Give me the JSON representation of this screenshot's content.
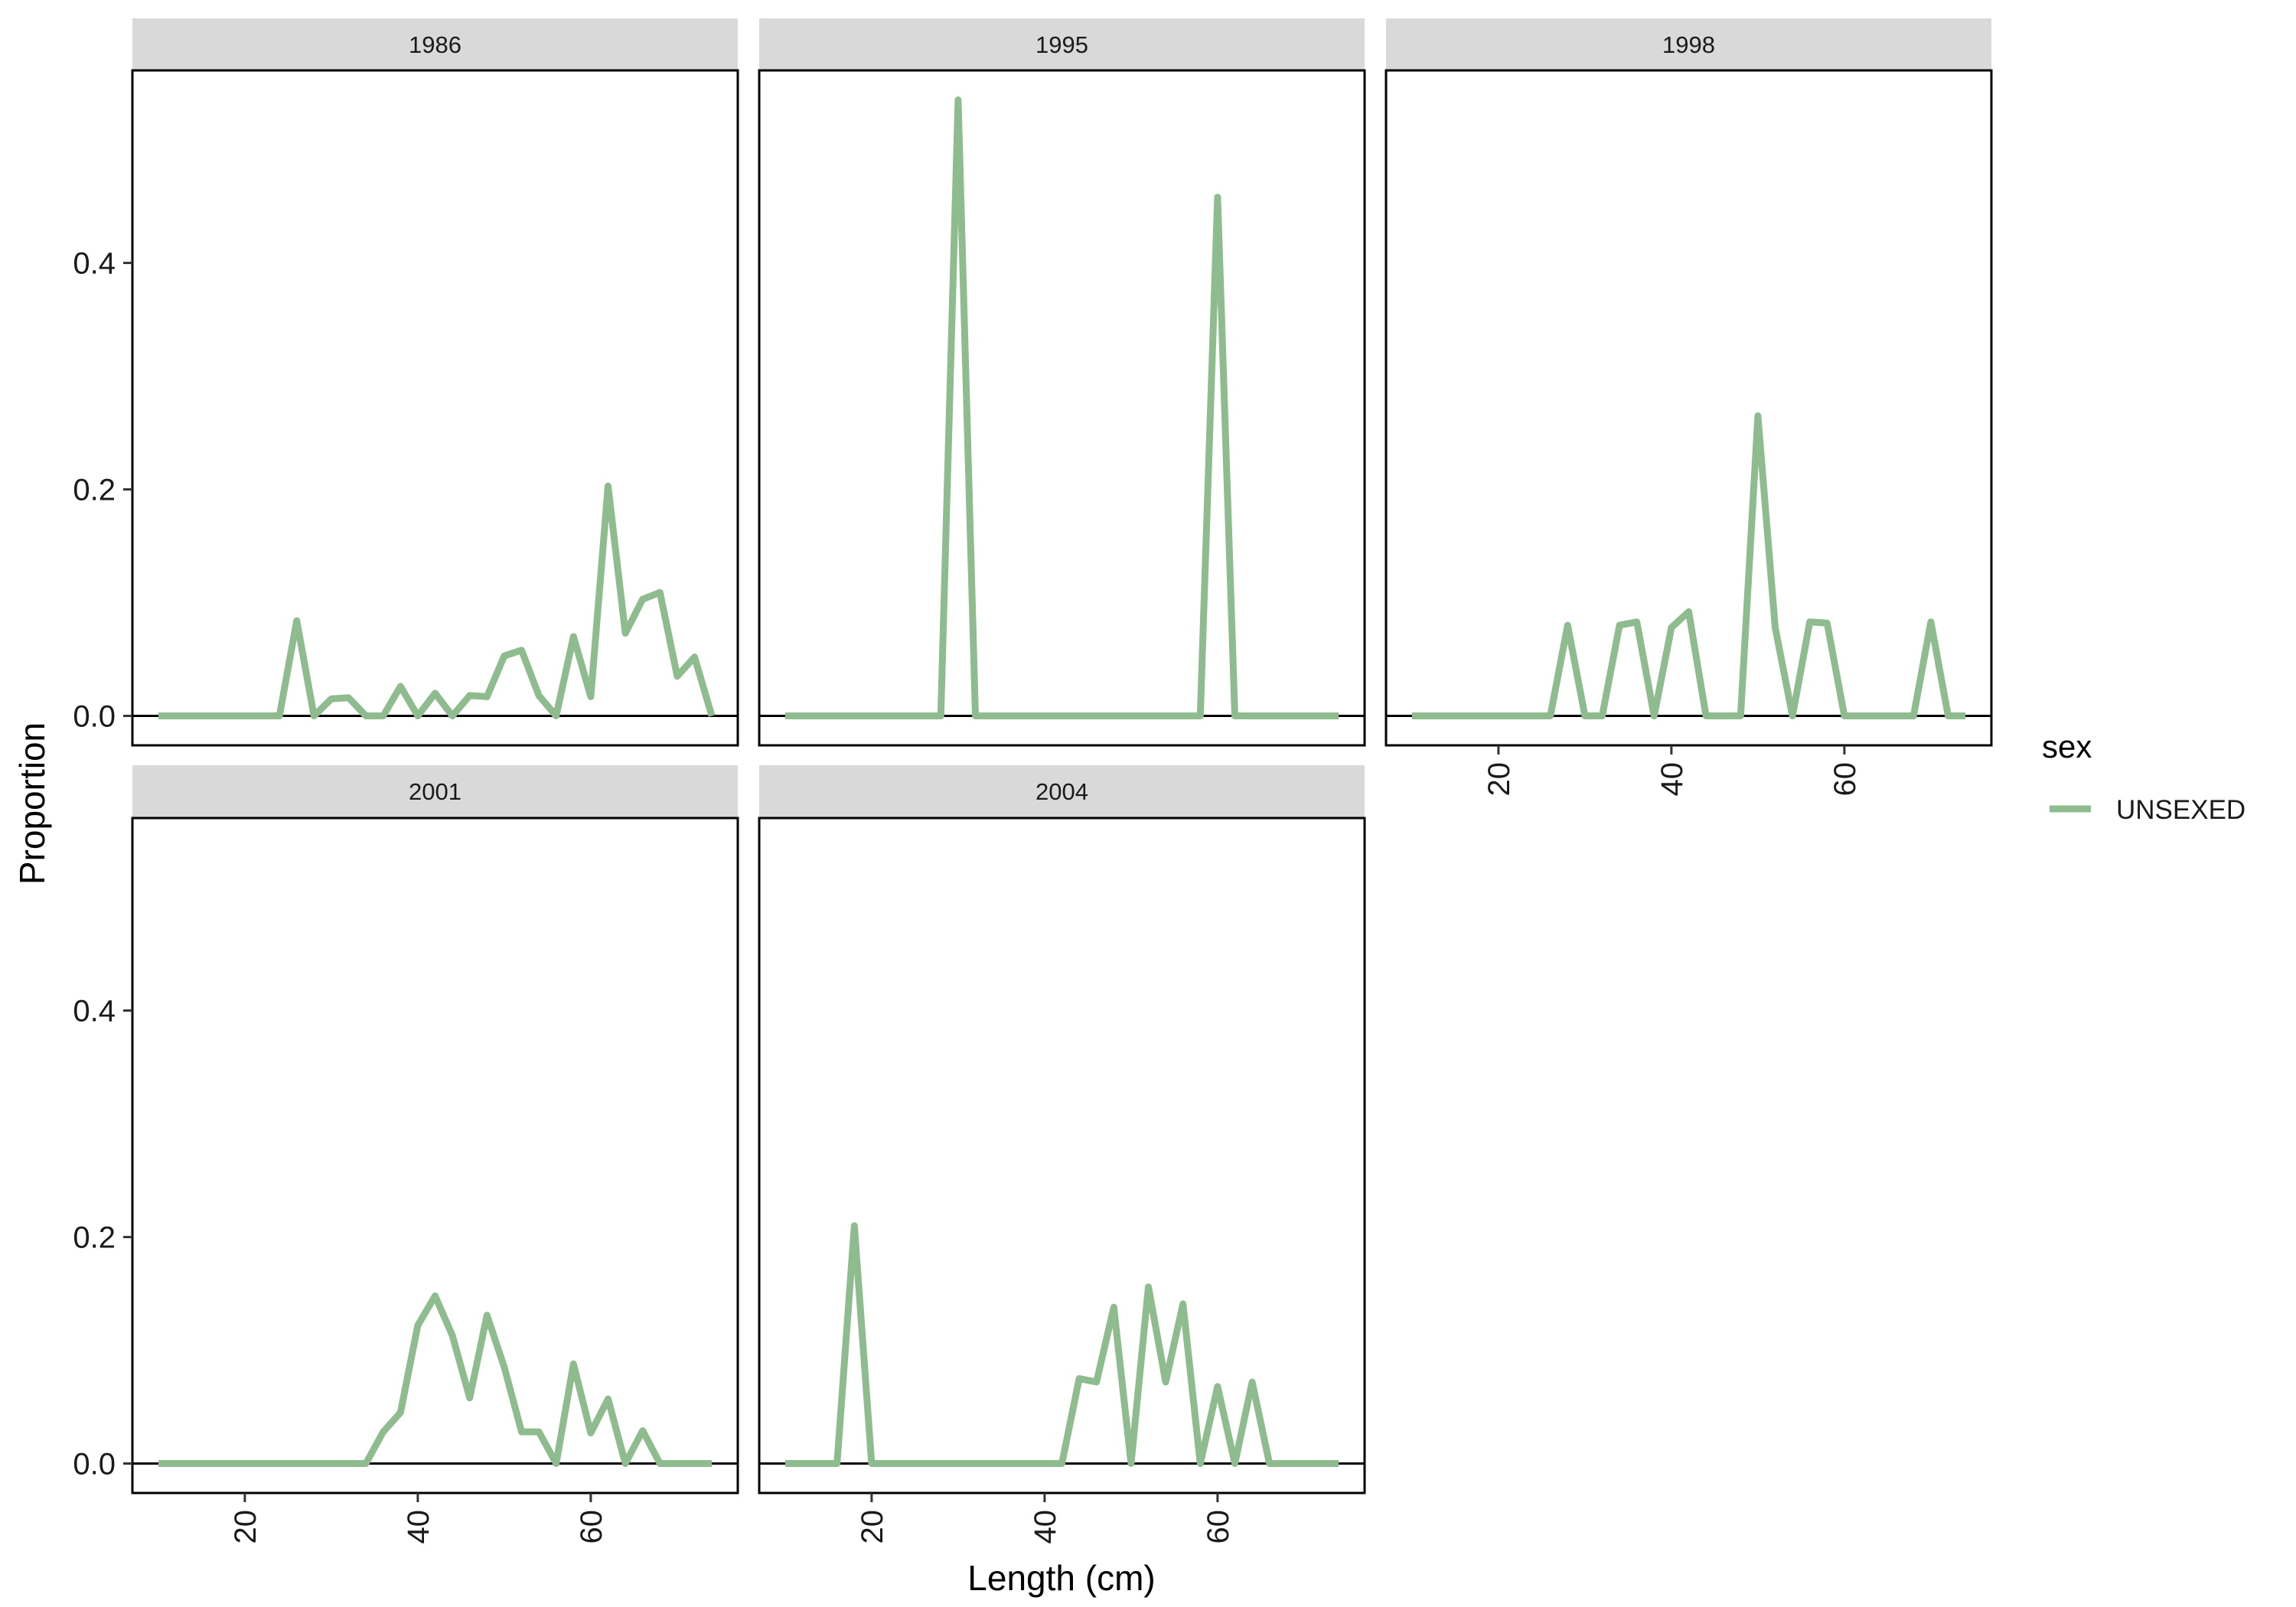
{
  "chart_data": {
    "type": "line",
    "xlabel": "Length (cm)",
    "ylabel": "Proportion",
    "xlim": [
      7,
      77
    ],
    "ylim": [
      -0.026,
      0.57
    ],
    "x_ticks": [
      20,
      40,
      60
    ],
    "y_ticks": [
      0.0,
      0.2,
      0.4
    ],
    "y_tick_labels": [
      "0.0",
      "0.2",
      "0.4"
    ],
    "x_tick_labels": [
      "20",
      "40",
      "60"
    ],
    "x": [
      10,
      12,
      14,
      16,
      18,
      20,
      22,
      24,
      26,
      28,
      30,
      32,
      34,
      36,
      38,
      40,
      42,
      44,
      46,
      48,
      50,
      52,
      54,
      56,
      58,
      60,
      62,
      64,
      66,
      68,
      70,
      72,
      74
    ],
    "legend": {
      "title": "sex",
      "items": [
        {
          "label": "UNSEXED",
          "color": "#8fbc8f"
        }
      ],
      "position": "right"
    },
    "grid": false,
    "facets": [
      {
        "label": "1986",
        "values": [
          0,
          0,
          0,
          0,
          0,
          0,
          0,
          0,
          0.084,
          0,
          0.015,
          0.016,
          0,
          0,
          0.026,
          0,
          0.02,
          0,
          0.018,
          0.017,
          0.053,
          0.058,
          0.018,
          0,
          0.07,
          0.017,
          0.203,
          0.073,
          0.103,
          0.109,
          0.035,
          0.052,
          0
        ]
      },
      {
        "label": "1995",
        "values": [
          0,
          0,
          0,
          0,
          0,
          0,
          0,
          0,
          0,
          0,
          0.544,
          0,
          0,
          0,
          0,
          0,
          0,
          0,
          0,
          0,
          0,
          0,
          0,
          0,
          0,
          0.458,
          0,
          0,
          0,
          0,
          0,
          0,
          0
        ]
      },
      {
        "label": "1998",
        "values": [
          0,
          0,
          0,
          0,
          0,
          0,
          0,
          0,
          0,
          0.08,
          0,
          0,
          0.08,
          0.083,
          0,
          0.078,
          0.092,
          0,
          0,
          0,
          0.265,
          0.078,
          0,
          0.083,
          0.082,
          0,
          0,
          0,
          0,
          0,
          0.083,
          0,
          0
        ]
      },
      {
        "label": "2001",
        "values": [
          0,
          0,
          0,
          0,
          0,
          0,
          0,
          0,
          0,
          0,
          0,
          0,
          0,
          0.028,
          0.045,
          0.122,
          0.148,
          0.113,
          0.058,
          0.131,
          0.085,
          0.028,
          0.028,
          0,
          0.088,
          0.027,
          0.057,
          0,
          0.029,
          0,
          0,
          0,
          0
        ]
      },
      {
        "label": "2004",
        "values": [
          0,
          0,
          0,
          0,
          0.21,
          0,
          0,
          0,
          0,
          0,
          0,
          0,
          0,
          0,
          0,
          0,
          0,
          0.075,
          0.072,
          0.138,
          0,
          0.156,
          0.072,
          0.141,
          0,
          0.068,
          0,
          0.072,
          0,
          0,
          0,
          0,
          0
        ]
      }
    ]
  }
}
